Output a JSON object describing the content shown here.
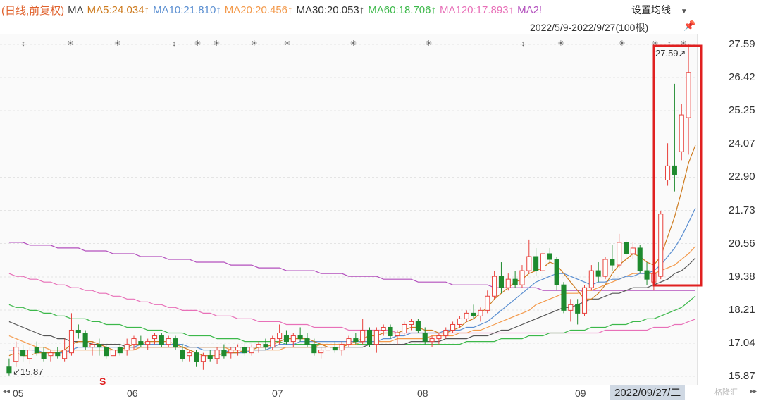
{
  "legend": {
    "mode": "(日线,前复权)",
    "ma": "MA",
    "ma5": "MA5:24.034↑",
    "ma10": "MA10:21.810↑",
    "ma20": "MA20:20.456↑",
    "ma30": "MA30:20.053↑",
    "ma60": "MA60:18.706↑",
    "ma120": "MA120:17.893↑",
    "ma250": "MA2!"
  },
  "controls": {
    "settings_label": "设置均线",
    "range_label": "2022/5/9-2022/9/27(100根)"
  },
  "chart_data": {
    "type": "candlestick",
    "y_ticks": [
      "27.59",
      "26.42",
      "25.25",
      "24.07",
      "22.90",
      "21.73",
      "20.56",
      "19.38",
      "18.21",
      "17.04",
      "15.87"
    ],
    "ylim": [
      15.87,
      27.59
    ],
    "x_ticks": [
      "05",
      "06",
      "07",
      "08",
      "09"
    ],
    "cursor_date": "2022/09/27/二",
    "max_label": "27.59",
    "min_label": "15.87",
    "colors": {
      "up": "#e8413c",
      "down": "#1e8a2e",
      "ma5": "#cd7b1f",
      "ma10": "#5b8fd1",
      "ma20": "#f39a4c",
      "ma30": "#555555",
      "ma60": "#3cb84a",
      "ma120": "#e870b8",
      "ma250": "#b34fbd"
    },
    "candles": [
      [
        16.2,
        16.5,
        15.9,
        16.0
      ],
      [
        16.4,
        17.1,
        16.2,
        16.9
      ],
      [
        16.8,
        17.0,
        16.4,
        16.6
      ],
      [
        16.5,
        16.9,
        16.3,
        16.8
      ],
      [
        16.9,
        17.1,
        16.6,
        16.7
      ],
      [
        16.7,
        16.9,
        16.4,
        16.5
      ],
      [
        16.6,
        16.8,
        16.4,
        16.7
      ],
      [
        16.7,
        16.9,
        16.5,
        16.6
      ],
      [
        16.5,
        17.2,
        16.4,
        16.8
      ],
      [
        16.7,
        18.1,
        16.6,
        17.5
      ],
      [
        17.5,
        17.7,
        17.2,
        17.4
      ],
      [
        17.4,
        17.5,
        16.8,
        16.9
      ],
      [
        16.9,
        17.1,
        16.6,
        17.0
      ],
      [
        17.0,
        17.2,
        16.6,
        16.9
      ],
      [
        16.9,
        17.0,
        16.5,
        16.6
      ],
      [
        16.6,
        16.9,
        16.5,
        16.8
      ],
      [
        16.9,
        17.0,
        16.6,
        16.7
      ],
      [
        16.8,
        17.2,
        16.6,
        17.0
      ],
      [
        17.0,
        17.3,
        16.8,
        17.2
      ],
      [
        17.1,
        17.3,
        16.9,
        17.0
      ],
      [
        17.0,
        17.2,
        16.8,
        17.1
      ],
      [
        17.2,
        17.4,
        17.0,
        17.3
      ],
      [
        17.3,
        17.4,
        16.9,
        17.0
      ],
      [
        17.0,
        17.3,
        16.9,
        17.2
      ],
      [
        17.2,
        17.3,
        16.8,
        16.9
      ],
      [
        16.8,
        17.0,
        16.4,
        16.5
      ],
      [
        16.6,
        16.8,
        16.4,
        16.7
      ],
      [
        16.7,
        16.8,
        16.2,
        16.4
      ],
      [
        16.4,
        16.7,
        16.1,
        16.6
      ],
      [
        16.6,
        16.8,
        16.4,
        16.5
      ],
      [
        16.5,
        16.9,
        16.3,
        16.8
      ],
      [
        16.8,
        17.0,
        16.5,
        16.6
      ],
      [
        16.7,
        16.9,
        16.5,
        16.8
      ],
      [
        16.8,
        17.0,
        16.6,
        16.9
      ],
      [
        16.9,
        17.1,
        16.6,
        16.7
      ],
      [
        16.7,
        17.0,
        16.6,
        16.9
      ],
      [
        16.9,
        17.1,
        16.7,
        17.0
      ],
      [
        17.0,
        17.2,
        16.8,
        16.9
      ],
      [
        16.9,
        17.3,
        16.8,
        17.2
      ],
      [
        17.2,
        17.7,
        17.0,
        17.4
      ],
      [
        17.3,
        17.5,
        17.0,
        17.1
      ],
      [
        17.1,
        17.4,
        16.9,
        17.3
      ],
      [
        17.3,
        17.6,
        17.1,
        17.2
      ],
      [
        17.2,
        17.4,
        16.9,
        17.0
      ],
      [
        17.0,
        17.2,
        16.6,
        16.7
      ],
      [
        16.7,
        16.9,
        16.5,
        16.8
      ],
      [
        16.8,
        17.0,
        16.6,
        16.9
      ],
      [
        16.9,
        17.1,
        16.7,
        16.8
      ],
      [
        16.8,
        17.1,
        16.6,
        17.0
      ],
      [
        17.0,
        17.3,
        16.9,
        17.2
      ],
      [
        17.2,
        17.4,
        17.0,
        17.1
      ],
      [
        17.1,
        17.9,
        17.0,
        17.5
      ],
      [
        17.5,
        17.6,
        16.9,
        17.0
      ],
      [
        17.0,
        17.6,
        16.7,
        17.5
      ],
      [
        17.5,
        17.7,
        17.3,
        17.6
      ],
      [
        17.6,
        17.7,
        17.2,
        17.3
      ],
      [
        17.3,
        17.5,
        17.0,
        17.4
      ],
      [
        17.4,
        17.8,
        17.3,
        17.7
      ],
      [
        17.7,
        17.9,
        17.5,
        17.8
      ],
      [
        17.8,
        17.9,
        17.4,
        17.5
      ],
      [
        17.4,
        17.6,
        17.0,
        17.1
      ],
      [
        17.1,
        17.3,
        16.9,
        17.2
      ],
      [
        17.2,
        17.4,
        17.0,
        17.3
      ],
      [
        17.3,
        17.6,
        17.2,
        17.5
      ],
      [
        17.5,
        17.8,
        17.4,
        17.7
      ],
      [
        17.7,
        18.0,
        17.6,
        17.9
      ],
      [
        17.9,
        18.2,
        17.8,
        18.1
      ],
      [
        18.1,
        18.4,
        17.9,
        18.0
      ],
      [
        18.0,
        18.3,
        17.8,
        18.2
      ],
      [
        18.2,
        18.9,
        18.1,
        18.7
      ],
      [
        18.7,
        19.6,
        18.6,
        19.4
      ],
      [
        19.4,
        19.9,
        18.8,
        19.0
      ],
      [
        19.0,
        19.5,
        18.9,
        19.3
      ],
      [
        19.3,
        19.6,
        19.0,
        19.1
      ],
      [
        19.1,
        19.8,
        19.0,
        19.6
      ],
      [
        19.6,
        20.7,
        19.5,
        20.1
      ],
      [
        20.1,
        20.4,
        19.4,
        19.6
      ],
      [
        19.6,
        20.3,
        19.5,
        20.2
      ],
      [
        20.2,
        20.4,
        19.9,
        20.0
      ],
      [
        20.0,
        20.1,
        18.9,
        19.1
      ],
      [
        19.1,
        19.2,
        18.1,
        18.2
      ],
      [
        18.2,
        18.6,
        17.8,
        18.4
      ],
      [
        18.4,
        18.6,
        17.7,
        18.1
      ],
      [
        18.1,
        19.1,
        18.0,
        19.0
      ],
      [
        19.0,
        19.8,
        18.9,
        19.6
      ],
      [
        19.6,
        19.9,
        19.2,
        19.4
      ],
      [
        19.4,
        20.1,
        19.3,
        20.0
      ],
      [
        20.0,
        20.5,
        19.6,
        19.8
      ],
      [
        19.8,
        20.9,
        19.7,
        20.6
      ],
      [
        20.6,
        20.7,
        20.0,
        20.2
      ],
      [
        20.2,
        20.6,
        20.0,
        20.4
      ],
      [
        20.4,
        20.5,
        19.5,
        19.6
      ],
      [
        19.6,
        19.9,
        19.1,
        19.3
      ],
      [
        19.2,
        19.6,
        18.9,
        19.5
      ],
      [
        19.4,
        21.7,
        19.3,
        21.6
      ],
      [
        22.8,
        24.1,
        22.6,
        23.3
      ],
      [
        23.3,
        26.2,
        22.4,
        23.0
      ],
      [
        23.8,
        25.5,
        23.5,
        25.1
      ],
      [
        25.0,
        27.59,
        23.7,
        26.6
      ]
    ],
    "ma_lines": {
      "ma5": [
        16.6,
        16.7,
        16.6,
        16.6,
        16.7,
        16.7,
        16.7,
        16.7,
        16.8,
        17.0,
        17.1,
        17.1,
        17.1,
        17.0,
        16.9,
        16.8,
        16.8,
        16.9,
        17.0,
        17.0,
        17.1,
        17.1,
        17.1,
        17.1,
        17.0,
        16.9,
        16.8,
        16.7,
        16.6,
        16.6,
        16.6,
        16.7,
        16.7,
        16.7,
        16.8,
        16.8,
        16.9,
        16.9,
        17.0,
        17.1,
        17.2,
        17.2,
        17.2,
        17.2,
        17.1,
        17.0,
        16.9,
        16.9,
        16.9,
        17.0,
        17.1,
        17.2,
        17.3,
        17.3,
        17.4,
        17.4,
        17.4,
        17.5,
        17.6,
        17.6,
        17.5,
        17.5,
        17.4,
        17.4,
        17.5,
        17.6,
        17.8,
        17.9,
        18.1,
        18.3,
        18.6,
        18.8,
        19.0,
        19.2,
        19.3,
        19.5,
        19.6,
        19.7,
        19.9,
        19.8,
        19.5,
        19.2,
        18.9,
        18.6,
        18.6,
        18.8,
        19.1,
        19.5,
        19.8,
        20.0,
        20.2,
        20.1,
        19.9,
        19.8,
        20.1,
        20.8,
        21.5,
        22.4,
        23.4,
        24.03
      ],
      "ma10": [
        16.8,
        16.8,
        16.8,
        16.8,
        16.8,
        16.7,
        16.7,
        16.7,
        16.7,
        16.8,
        16.9,
        16.9,
        16.9,
        16.9,
        16.9,
        16.9,
        16.9,
        16.9,
        16.9,
        17.0,
        17.0,
        17.0,
        17.0,
        17.0,
        17.0,
        17.0,
        16.9,
        16.9,
        16.8,
        16.8,
        16.8,
        16.8,
        16.7,
        16.7,
        16.7,
        16.8,
        16.8,
        16.8,
        16.9,
        17.0,
        17.0,
        17.0,
        17.1,
        17.1,
        17.1,
        17.1,
        17.1,
        17.1,
        17.1,
        17.1,
        17.1,
        17.1,
        17.1,
        17.1,
        17.2,
        17.2,
        17.3,
        17.3,
        17.4,
        17.4,
        17.4,
        17.4,
        17.4,
        17.5,
        17.5,
        17.5,
        17.6,
        17.6,
        17.7,
        17.8,
        18.0,
        18.2,
        18.4,
        18.6,
        18.8,
        19.0,
        19.2,
        19.3,
        19.4,
        19.5,
        19.5,
        19.4,
        19.3,
        19.2,
        19.1,
        19.2,
        19.2,
        19.3,
        19.3,
        19.4,
        19.4,
        19.5,
        19.5,
        19.6,
        19.8,
        20.1,
        20.4,
        20.8,
        21.3,
        21.81
      ],
      "ma20": [
        17.3,
        17.2,
        17.1,
        17.0,
        16.9,
        16.9,
        16.8,
        16.8,
        16.8,
        16.8,
        16.8,
        16.8,
        16.8,
        16.8,
        16.8,
        16.8,
        16.8,
        16.8,
        16.8,
        16.9,
        16.9,
        16.9,
        16.9,
        16.9,
        16.9,
        16.9,
        16.9,
        16.9,
        16.9,
        16.9,
        16.9,
        16.9,
        16.8,
        16.8,
        16.8,
        16.8,
        16.8,
        16.8,
        16.8,
        16.8,
        16.9,
        16.9,
        16.9,
        16.9,
        16.9,
        17.0,
        17.0,
        17.0,
        17.0,
        17.0,
        17.0,
        17.1,
        17.1,
        17.1,
        17.1,
        17.1,
        17.2,
        17.2,
        17.2,
        17.2,
        17.2,
        17.3,
        17.3,
        17.3,
        17.3,
        17.4,
        17.4,
        17.5,
        17.5,
        17.6,
        17.7,
        17.8,
        17.9,
        18.0,
        18.1,
        18.2,
        18.4,
        18.5,
        18.6,
        18.7,
        18.8,
        18.8,
        18.8,
        18.9,
        18.9,
        19.0,
        19.1,
        19.2,
        19.3,
        19.4,
        19.5,
        19.5,
        19.5,
        19.5,
        19.6,
        19.7,
        19.8,
        20.0,
        20.2,
        20.46
      ],
      "ma30": [
        17.8,
        17.7,
        17.6,
        17.5,
        17.4,
        17.3,
        17.3,
        17.2,
        17.2,
        17.1,
        17.1,
        17.1,
        17.0,
        17.0,
        17.0,
        17.0,
        17.0,
        16.9,
        16.9,
        16.9,
        16.9,
        16.9,
        16.9,
        16.9,
        16.9,
        16.9,
        16.9,
        16.9,
        16.9,
        16.9,
        16.9,
        16.9,
        16.9,
        16.9,
        16.9,
        16.9,
        16.9,
        16.9,
        16.9,
        16.9,
        16.9,
        16.9,
        16.9,
        16.9,
        16.9,
        16.9,
        16.9,
        16.9,
        16.9,
        16.9,
        16.9,
        16.9,
        17.0,
        17.0,
        17.0,
        17.0,
        17.0,
        17.0,
        17.1,
        17.1,
        17.1,
        17.1,
        17.1,
        17.2,
        17.2,
        17.2,
        17.2,
        17.3,
        17.3,
        17.3,
        17.4,
        17.5,
        17.5,
        17.6,
        17.7,
        17.8,
        17.9,
        18.0,
        18.1,
        18.2,
        18.3,
        18.3,
        18.4,
        18.5,
        18.6,
        18.6,
        18.7,
        18.8,
        18.8,
        18.9,
        19.0,
        19.0,
        19.0,
        19.1,
        19.2,
        19.3,
        19.5,
        19.6,
        19.8,
        20.05
      ],
      "ma60": [
        18.4,
        18.3,
        18.3,
        18.2,
        18.2,
        18.1,
        18.1,
        18.0,
        18.0,
        17.9,
        17.9,
        17.9,
        17.8,
        17.8,
        17.7,
        17.7,
        17.7,
        17.6,
        17.6,
        17.6,
        17.5,
        17.5,
        17.5,
        17.4,
        17.4,
        17.4,
        17.3,
        17.3,
        17.3,
        17.3,
        17.2,
        17.2,
        17.2,
        17.2,
        17.1,
        17.1,
        17.1,
        17.1,
        17.1,
        17.1,
        17.0,
        17.0,
        17.0,
        17.0,
        17.0,
        17.0,
        17.0,
        17.0,
        17.0,
        17.0,
        17.0,
        17.0,
        17.0,
        17.0,
        17.0,
        17.0,
        17.0,
        17.0,
        17.0,
        17.0,
        17.0,
        17.0,
        17.0,
        17.0,
        17.0,
        17.0,
        17.1,
        17.1,
        17.1,
        17.1,
        17.1,
        17.2,
        17.2,
        17.2,
        17.2,
        17.3,
        17.3,
        17.3,
        17.4,
        17.4,
        17.4,
        17.5,
        17.5,
        17.5,
        17.6,
        17.6,
        17.6,
        17.7,
        17.7,
        17.7,
        17.8,
        17.8,
        17.9,
        17.9,
        18.0,
        18.1,
        18.2,
        18.3,
        18.5,
        18.71
      ],
      "ma120": [
        19.5,
        19.4,
        19.4,
        19.3,
        19.3,
        19.2,
        19.2,
        19.1,
        19.1,
        19.0,
        19.0,
        18.9,
        18.9,
        18.8,
        18.8,
        18.7,
        18.7,
        18.6,
        18.6,
        18.5,
        18.5,
        18.4,
        18.4,
        18.3,
        18.3,
        18.2,
        18.2,
        18.2,
        18.1,
        18.1,
        18.0,
        18.0,
        18.0,
        17.9,
        17.9,
        17.9,
        17.8,
        17.8,
        17.8,
        17.8,
        17.7,
        17.7,
        17.7,
        17.7,
        17.6,
        17.6,
        17.6,
        17.6,
        17.6,
        17.5,
        17.5,
        17.5,
        17.5,
        17.5,
        17.5,
        17.5,
        17.4,
        17.4,
        17.4,
        17.4,
        17.4,
        17.4,
        17.4,
        17.4,
        17.4,
        17.4,
        17.4,
        17.4,
        17.4,
        17.4,
        17.4,
        17.4,
        17.4,
        17.4,
        17.4,
        17.4,
        17.4,
        17.4,
        17.4,
        17.4,
        17.4,
        17.4,
        17.4,
        17.4,
        17.4,
        17.4,
        17.5,
        17.5,
        17.5,
        17.5,
        17.5,
        17.5,
        17.5,
        17.6,
        17.6,
        17.6,
        17.7,
        17.7,
        17.8,
        17.89
      ],
      "ma250": [
        20.6,
        20.6,
        20.6,
        20.5,
        20.5,
        20.5,
        20.5,
        20.4,
        20.4,
        20.4,
        20.4,
        20.3,
        20.3,
        20.3,
        20.3,
        20.2,
        20.2,
        20.2,
        20.2,
        20.1,
        20.1,
        20.1,
        20.1,
        20.0,
        20.0,
        20.0,
        20.0,
        19.9,
        19.9,
        19.9,
        19.9,
        19.9,
        19.8,
        19.8,
        19.8,
        19.8,
        19.7,
        19.7,
        19.7,
        19.7,
        19.6,
        19.6,
        19.6,
        19.6,
        19.6,
        19.5,
        19.5,
        19.5,
        19.5,
        19.4,
        19.4,
        19.4,
        19.4,
        19.4,
        19.3,
        19.3,
        19.3,
        19.3,
        19.3,
        19.2,
        19.2,
        19.2,
        19.2,
        19.2,
        19.1,
        19.1,
        19.1,
        19.1,
        19.1,
        19.1,
        19.0,
        19.0,
        19.0,
        19.0,
        19.0,
        19.0,
        19.0,
        18.9,
        18.9,
        18.9,
        18.9,
        18.9,
        18.9,
        18.9,
        18.9,
        18.9,
        18.9,
        18.9,
        18.9,
        18.9,
        18.9,
        18.9,
        18.9,
        18.9,
        18.9,
        18.9,
        18.9,
        18.9,
        18.9,
        18.9
      ]
    },
    "event_markers": [
      3,
      13,
      23,
      35,
      40,
      44,
      52,
      59,
      73,
      89,
      109,
      117,
      130,
      137,
      140,
      143
    ],
    "event_glyphs": [
      "↕",
      "✳",
      "✳",
      "↕",
      "✳",
      "✳",
      "✳",
      "✳",
      "✳",
      "✳",
      "↕",
      "✳",
      "✳",
      "✳",
      "↕",
      "✳"
    ]
  },
  "footer": {
    "watermark": "格隆汇"
  }
}
